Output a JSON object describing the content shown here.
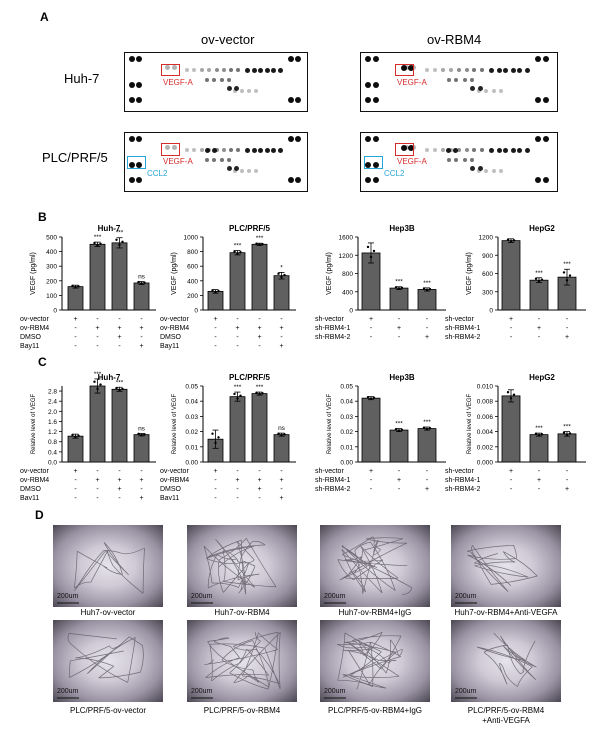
{
  "panels": {
    "a": "A",
    "b": "B",
    "c": "C",
    "d": "D"
  },
  "panel_a": {
    "col_titles": [
      "ov-vector",
      "ov-RBM4"
    ],
    "row_titles": [
      "Huh-7",
      "PLC/PRF/5"
    ],
    "marker_vegf": "VEGF-A",
    "marker_ccl2": "CCL2"
  },
  "chart_data": [
    {
      "type": "bar",
      "title": "Huh-7",
      "ylabel": "VEGF (pg/ml)",
      "ylim": [
        0,
        500
      ],
      "ticks": [
        0,
        100,
        200,
        300,
        400,
        500
      ],
      "values": [
        160,
        450,
        460,
        185
      ],
      "errors": [
        10,
        15,
        35,
        10
      ],
      "sig": [
        "",
        "***",
        "***",
        "ns"
      ],
      "conditions": [
        {
          "name": "ov-vector",
          "signs": [
            "+",
            "-",
            "-",
            "-"
          ]
        },
        {
          "name": "ov-RBM4",
          "signs": [
            "-",
            "+",
            "+",
            "+"
          ]
        },
        {
          "name": "DMSO",
          "signs": [
            "-",
            "-",
            "+",
            "-"
          ]
        },
        {
          "name": "Bay11",
          "signs": [
            "-",
            "-",
            "-",
            "+"
          ]
        }
      ]
    },
    {
      "type": "bar",
      "title": "PLC/PRF/5",
      "ylabel": "VEGF (pg/ml)",
      "ylim": [
        0,
        1000
      ],
      "ticks": [
        0,
        200,
        400,
        600,
        800,
        1000
      ],
      "values": [
        255,
        785,
        900,
        470
      ],
      "errors": [
        25,
        30,
        15,
        45
      ],
      "sig": [
        "",
        "***",
        "***",
        "*"
      ],
      "conditions": [
        {
          "name": "ov-vector",
          "signs": [
            "+",
            "-",
            "-",
            "-"
          ]
        },
        {
          "name": "ov-RBM4",
          "signs": [
            "-",
            "+",
            "+",
            "+"
          ]
        },
        {
          "name": "DMSO",
          "signs": [
            "-",
            "-",
            "+",
            "-"
          ]
        },
        {
          "name": "Bay11",
          "signs": [
            "-",
            "-",
            "-",
            "+"
          ]
        }
      ]
    },
    {
      "type": "bar",
      "title": "Hep3B",
      "ylabel": "VEGF (pg/ml)",
      "ylim": [
        0,
        1600
      ],
      "ticks": [
        0,
        400,
        800,
        1200,
        1600
      ],
      "values": [
        1250,
        480,
        450
      ],
      "errors": [
        220,
        30,
        35
      ],
      "sig": [
        "",
        "***",
        "***"
      ],
      "conditions": [
        {
          "name": "sh-vector",
          "signs": [
            "+",
            "-",
            "-"
          ]
        },
        {
          "name": "sh-RBM4-1",
          "signs": [
            "-",
            "+",
            "-"
          ]
        },
        {
          "name": "sh-RBM4-2",
          "signs": [
            "-",
            "-",
            "+"
          ]
        }
      ]
    },
    {
      "type": "bar",
      "title": "HepG2",
      "ylabel": "VEGF (pg/ml)",
      "ylim": [
        0,
        1200
      ],
      "ticks": [
        0,
        300,
        600,
        900,
        1200
      ],
      "values": [
        1140,
        490,
        540
      ],
      "errors": [
        30,
        40,
        130
      ],
      "sig": [
        "",
        "***",
        "***"
      ],
      "conditions": [
        {
          "name": "sh-vector",
          "signs": [
            "+",
            "-",
            "-"
          ]
        },
        {
          "name": "sh-RBM4-1",
          "signs": [
            "-",
            "+",
            "-"
          ]
        },
        {
          "name": "sh-RBM4-2",
          "signs": [
            "-",
            "-",
            "+"
          ]
        }
      ]
    },
    {
      "type": "bar",
      "title": "Huh-7",
      "ylabel": "Relative level of VEGF",
      "ylim": [
        0,
        3.0
      ],
      "ticks": [
        "0.0",
        "0.4",
        "0.8",
        "1.2",
        "1.6",
        "2.0",
        "2.4",
        "2.8"
      ],
      "tickvals": [
        0,
        0.4,
        0.8,
        1.2,
        1.6,
        2.0,
        2.4,
        2.8
      ],
      "values": [
        1.02,
        3.0,
        2.87,
        1.08
      ],
      "errors": [
        0.08,
        0.28,
        0.08,
        0.05
      ],
      "sig": [
        "",
        "***",
        "***",
        "ns"
      ],
      "conditions": [
        {
          "name": "ov-vector",
          "signs": [
            "+",
            "-",
            "-",
            "-"
          ]
        },
        {
          "name": "ov-RBM4",
          "signs": [
            "-",
            "+",
            "+",
            "+"
          ]
        },
        {
          "name": "DMSO",
          "signs": [
            "-",
            "-",
            "+",
            "-"
          ]
        },
        {
          "name": "Bay11",
          "signs": [
            "-",
            "-",
            "-",
            "+"
          ]
        }
      ]
    },
    {
      "type": "bar",
      "title": "PLC/PRF/5",
      "ylabel": "Relative level of VEGF",
      "ylim": [
        0,
        0.05
      ],
      "ticks": [
        "0.00",
        "0.01",
        "0.02",
        "0.03",
        "0.04",
        "0.05"
      ],
      "tickvals": [
        0,
        0.01,
        0.02,
        0.03,
        0.04,
        0.05
      ],
      "values": [
        0.015,
        0.043,
        0.045,
        0.018
      ],
      "errors": [
        0.006,
        0.003,
        0.001,
        0.001
      ],
      "sig": [
        "",
        "***",
        "***",
        "ns"
      ],
      "conditions": [
        {
          "name": "ov-vector",
          "signs": [
            "+",
            "-",
            "-",
            "-"
          ]
        },
        {
          "name": "ov-RBM4",
          "signs": [
            "-",
            "+",
            "+",
            "+"
          ]
        },
        {
          "name": "DMSO",
          "signs": [
            "-",
            "-",
            "+",
            "-"
          ]
        },
        {
          "name": "Bay11",
          "signs": [
            "-",
            "-",
            "-",
            "+"
          ]
        }
      ]
    },
    {
      "type": "bar",
      "title": "Hep3B",
      "ylabel": "Relative level of VEGF",
      "ylim": [
        0,
        0.05
      ],
      "ticks": [
        "0.00",
        "0.01",
        "0.02",
        "0.03",
        "0.04",
        "0.05"
      ],
      "tickvals": [
        0,
        0.01,
        0.02,
        0.03,
        0.04,
        0.05
      ],
      "values": [
        0.042,
        0.021,
        0.022
      ],
      "errors": [
        0.001,
        0.001,
        0.001
      ],
      "sig": [
        "",
        "***",
        "***"
      ],
      "conditions": [
        {
          "name": "sh-vector",
          "signs": [
            "+",
            "-",
            "-"
          ]
        },
        {
          "name": "sh-RBM4-1",
          "signs": [
            "-",
            "+",
            "-"
          ]
        },
        {
          "name": "sh-RBM4-2",
          "signs": [
            "-",
            "-",
            "+"
          ]
        }
      ]
    },
    {
      "type": "bar",
      "title": "HepG2",
      "ylabel": "Relative level of VEGF",
      "ylim": [
        0,
        0.01
      ],
      "ticks": [
        "0.000",
        "0.002",
        "0.004",
        "0.006",
        "0.008",
        "0.010"
      ],
      "tickvals": [
        0,
        0.002,
        0.004,
        0.006,
        0.008,
        0.01
      ],
      "values": [
        0.0087,
        0.0036,
        0.0037
      ],
      "errors": [
        0.0008,
        0.0002,
        0.0003
      ],
      "sig": [
        "",
        "***",
        "***"
      ],
      "conditions": [
        {
          "name": "sh-vector",
          "signs": [
            "+",
            "-",
            "-"
          ]
        },
        {
          "name": "sh-RBM4-1",
          "signs": [
            "-",
            "+",
            "-"
          ]
        },
        {
          "name": "sh-RBM4-2",
          "signs": [
            "-",
            "-",
            "+"
          ]
        }
      ]
    }
  ],
  "panel_d": {
    "scale_bar": "200um",
    "captions": [
      "Huh7-ov-vector",
      "Huh7-ov-RBM4",
      "Huh7-ov-RBM4+IgG",
      "Huh7-ov-RBM4+Anti-VEGFA",
      "PLC/PRF/5-ov-vector",
      "PLC/PRF/5-ov-RBM4",
      "PLC/PRF/5-ov-RBM4+IgG",
      "PLC/PRF/5-ov-RBM4",
      "+Anti-VEGFA"
    ]
  }
}
